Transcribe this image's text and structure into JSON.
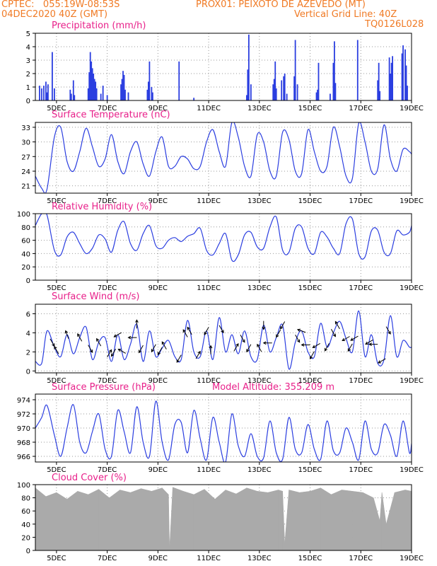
{
  "header": {
    "line1_left": "CPTEC:   055:19W-08:53S",
    "line1_right": "PROX01: PEIXOTO DE AZEVEDO (MT)",
    "line2_left": "04DEC2020 40Z (GMT)",
    "line2_right": "Vertical Grid Line: 40Z",
    "line3_right": "TQ0126L028"
  },
  "colors": {
    "header": "#f07a24",
    "title": "#e8208a",
    "series": "#2b3ee0",
    "cloud": "#aaaaaa"
  },
  "x_axis": {
    "labels": [
      "5DEC",
      "7DEC",
      "9DEC",
      "11DEC",
      "13DEC",
      "15DEC",
      "17DEC",
      "19DEC"
    ],
    "label_hours": [
      20,
      68,
      116,
      164,
      212,
      260,
      308,
      356
    ]
  },
  "chart_data": [
    {
      "type": "bar",
      "title": "Precipitation  (mm/h)",
      "ylim": [
        0,
        5
      ],
      "yticks": [
        0,
        1,
        2,
        3,
        4,
        5
      ],
      "x": [
        4,
        6,
        8,
        10,
        11,
        12,
        16,
        18,
        33,
        34,
        36,
        37,
        50,
        51,
        52,
        53,
        54,
        55,
        56,
        57,
        58,
        62,
        64,
        68,
        81,
        82,
        83,
        84,
        85,
        88,
        106,
        107,
        108,
        110,
        111,
        136,
        150,
        200,
        201,
        202,
        204,
        225,
        226,
        227,
        228,
        233,
        235,
        236,
        238,
        245,
        246,
        248,
        266,
        267,
        268,
        279,
        282,
        283,
        284,
        305,
        324,
        325,
        326,
        335,
        336,
        337,
        338,
        347,
        348,
        350,
        351,
        352
      ],
      "values": [
        1.1,
        0.9,
        1.1,
        1.4,
        0.6,
        1.2,
        3.6,
        0.9,
        0.8,
        0.5,
        1.5,
        0.4,
        0.9,
        2.1,
        3.6,
        2.9,
        2.4,
        2.0,
        1.6,
        1.4,
        0.9,
        0.5,
        1.1,
        0.4,
        1.2,
        1.6,
        2.2,
        1.9,
        0.8,
        0.6,
        0.8,
        1.4,
        2.9,
        1.0,
        0.6,
        2.9,
        0.2,
        0.4,
        2.3,
        4.9,
        1.2,
        1.2,
        1.6,
        2.9,
        0.9,
        1.5,
        1.8,
        2.0,
        0.5,
        1.8,
        4.5,
        1.2,
        0.6,
        0.8,
        2.8,
        0.5,
        2.8,
        4.4,
        1.3,
        4.5,
        1.5,
        2.8,
        0.7,
        3.2,
        2.0,
        2.8,
        3.3,
        3.5,
        4.1,
        3.8,
        2.6,
        1.1
      ]
    },
    {
      "type": "line",
      "title": "Surface Temperature (nC)",
      "ylim": [
        19.5,
        34
      ],
      "yticks": [
        21,
        24,
        27,
        30,
        33
      ],
      "x": [
        0,
        6,
        11,
        18,
        24,
        30,
        36,
        42,
        48,
        54,
        60,
        66,
        72,
        78,
        84,
        90,
        96,
        102,
        108,
        114,
        120,
        126,
        132,
        138,
        144,
        150,
        156,
        162,
        168,
        174,
        180,
        186,
        192,
        198,
        204,
        210,
        216,
        222,
        228,
        234,
        240,
        246,
        252,
        258,
        264,
        270,
        276,
        282,
        288,
        294,
        300,
        306,
        312,
        318,
        324,
        330,
        336,
        342,
        348,
        354,
        356
      ],
      "values": [
        23,
        20.5,
        20.3,
        31,
        33,
        26,
        24,
        28,
        32.8,
        29,
        25,
        26.5,
        31.5,
        26,
        23.5,
        28,
        30,
        25.5,
        23,
        28,
        31,
        25,
        25,
        27,
        26.5,
        24.5,
        25,
        30,
        32.5,
        28,
        25,
        34,
        31,
        25,
        23,
        31.5,
        30,
        24,
        23,
        32,
        30.5,
        24,
        23.5,
        32.5,
        28,
        24,
        25,
        33,
        29,
        23,
        22.5,
        33.8,
        30,
        24,
        24.5,
        33.5,
        26.5,
        24,
        28.5,
        28,
        27.5
      ]
    },
    {
      "type": "line",
      "title": "Relative Humidity  (%)",
      "ylim": [
        0,
        100
      ],
      "yticks": [
        0,
        20,
        40,
        60,
        80,
        100
      ],
      "x": [
        0,
        6,
        11,
        18,
        24,
        30,
        36,
        42,
        48,
        54,
        60,
        66,
        72,
        78,
        84,
        90,
        96,
        102,
        108,
        114,
        120,
        126,
        132,
        138,
        144,
        150,
        156,
        162,
        168,
        174,
        180,
        186,
        192,
        198,
        204,
        210,
        216,
        222,
        228,
        234,
        240,
        246,
        252,
        258,
        264,
        270,
        276,
        282,
        288,
        294,
        300,
        306,
        312,
        318,
        324,
        330,
        336,
        342,
        348,
        354,
        356
      ],
      "values": [
        82,
        100,
        98,
        45,
        38,
        65,
        72,
        55,
        40,
        48,
        68,
        62,
        42,
        75,
        88,
        55,
        45,
        70,
        82,
        52,
        48,
        60,
        64,
        58,
        66,
        70,
        78,
        45,
        38,
        55,
        70,
        30,
        38,
        68,
        72,
        50,
        48,
        80,
        95,
        45,
        42,
        78,
        80,
        48,
        40,
        72,
        65,
        48,
        40,
        85,
        92,
        40,
        35,
        74,
        75,
        42,
        40,
        74,
        68,
        72,
        82
      ]
    },
    {
      "type": "line",
      "title": "Surface Wind  (m/s)",
      "ylim": [
        -0.2,
        7
      ],
      "yticks": [
        0,
        2,
        4,
        6
      ],
      "x": [
        0,
        6,
        11,
        18,
        24,
        30,
        36,
        42,
        48,
        54,
        60,
        66,
        72,
        78,
        84,
        90,
        96,
        102,
        108,
        114,
        120,
        126,
        132,
        138,
        144,
        150,
        156,
        162,
        168,
        174,
        180,
        186,
        192,
        198,
        204,
        210,
        216,
        222,
        228,
        234,
        240,
        246,
        252,
        258,
        264,
        270,
        276,
        282,
        288,
        294,
        300,
        306,
        312,
        318,
        324,
        330,
        336,
        342,
        348,
        354,
        356
      ],
      "values": [
        1,
        0.8,
        4.2,
        2.5,
        1.5,
        3.8,
        1.8,
        3.5,
        4.6,
        1.2,
        3,
        3.5,
        1,
        3.8,
        1.2,
        2.8,
        4.9,
        1,
        4.2,
        1.5,
        2.4,
        3.2,
        1.5,
        1.2,
        5.3,
        2,
        1.5,
        4.2,
        1.2,
        5.6,
        2,
        3.8,
        1.8,
        4.2,
        1.5,
        1.2,
        4.8,
        2,
        3.5,
        4.8,
        0.2,
        3,
        4.2,
        2,
        1.5,
        5,
        2.5,
        4,
        5.2,
        3.4,
        2,
        6.3,
        1.5,
        3.8,
        0.8,
        1.2,
        5.8,
        1.5,
        3.2,
        2.5,
        2.5
      ],
      "arrows_x": [
        16,
        20,
        30,
        42,
        52,
        60,
        70,
        74,
        78,
        82,
        92,
        96,
        100,
        112,
        118,
        122,
        136,
        142,
        146,
        154,
        162,
        166,
        176,
        190,
        196,
        202,
        212,
        216,
        220,
        230,
        234,
        248,
        252,
        256,
        262,
        266,
        276,
        282,
        286,
        294,
        298,
        302,
        316,
        320,
        328,
        334
      ],
      "arrows_dir": [
        300,
        120,
        110,
        120,
        300,
        120,
        60,
        240,
        210,
        150,
        180,
        90,
        240,
        240,
        240,
        120,
        240,
        120,
        120,
        60,
        240,
        90,
        300,
        60,
        300,
        240,
        120,
        270,
        180,
        240,
        240,
        300,
        160,
        180,
        240,
        210,
        240,
        300,
        120,
        210,
        240,
        210,
        210,
        180,
        210,
        300
      ]
    },
    {
      "type": "line",
      "title": "Surface Pressure  (hPa)",
      "subtitle": "Model Altitude: 355.209  m",
      "ylim": [
        965.2,
        974.8
      ],
      "yticks": [
        966,
        968,
        970,
        972,
        974
      ],
      "x": [
        0,
        6,
        11,
        18,
        24,
        30,
        36,
        42,
        48,
        54,
        60,
        66,
        72,
        78,
        84,
        90,
        96,
        102,
        108,
        114,
        120,
        126,
        132,
        138,
        144,
        150,
        156,
        162,
        168,
        174,
        180,
        186,
        192,
        198,
        204,
        210,
        216,
        222,
        228,
        234,
        240,
        246,
        252,
        258,
        264,
        270,
        276,
        282,
        288,
        294,
        300,
        306,
        312,
        318,
        324,
        330,
        336,
        342,
        348,
        354,
        356
      ],
      "values": [
        970,
        971.5,
        973.2,
        969,
        966,
        970,
        973.3,
        968,
        966.5,
        969.5,
        972,
        967,
        966,
        972.5,
        969.5,
        966.5,
        973,
        968,
        966,
        973.8,
        968,
        965.5,
        970.5,
        970.8,
        966.5,
        972.5,
        968.5,
        965.5,
        971.5,
        968,
        965.2,
        972,
        967.5,
        966,
        969.2,
        966,
        965.8,
        971,
        966.5,
        965.6,
        971.5,
        967,
        966.5,
        970.5,
        967,
        965.6,
        971,
        966.8,
        966.5,
        970,
        968,
        965.5,
        971,
        967,
        966.5,
        970.5,
        969,
        966,
        971,
        966.5,
        967.8
      ]
    },
    {
      "type": "area",
      "title": "Cloud Cover  (%)",
      "ylim": [
        0,
        100
      ],
      "yticks": [
        0,
        20,
        40,
        60,
        80,
        100
      ],
      "x": [
        0,
        10,
        20,
        30,
        40,
        50,
        60,
        70,
        80,
        90,
        100,
        110,
        120,
        126,
        127,
        130,
        140,
        150,
        160,
        170,
        180,
        190,
        200,
        210,
        220,
        230,
        234,
        236,
        240,
        250,
        260,
        270,
        280,
        290,
        300,
        310,
        320,
        326,
        328,
        332,
        340,
        350,
        356
      ],
      "values": [
        95,
        82,
        88,
        78,
        90,
        85,
        93,
        80,
        92,
        88,
        94,
        90,
        95,
        85,
        3,
        96,
        90,
        85,
        93,
        78,
        92,
        86,
        95,
        90,
        88,
        92,
        90,
        10,
        92,
        88,
        90,
        95,
        85,
        92,
        90,
        88,
        80,
        45,
        88,
        40,
        88,
        92,
        90
      ]
    }
  ]
}
